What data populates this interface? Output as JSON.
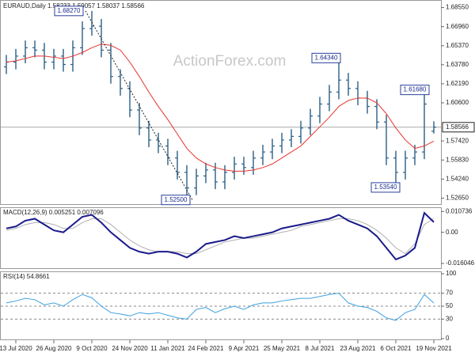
{
  "chart_data": {
    "type": "ohlc",
    "title": "EURAUD,Daily  1.58233 1.59057 1.58037 1.58566",
    "watermark": "ActionForex.com",
    "color": "#2a5f86",
    "categories": [
      null,
      "13 Jul 2020",
      null,
      null,
      null,
      "26 Aug 2020",
      null,
      null,
      null,
      "9 Oct 2020",
      null,
      null,
      null,
      "24 Nov 2020",
      null,
      null,
      null,
      "11 Jan 2021",
      null,
      null,
      null,
      "24 Feb 2021",
      null,
      null,
      null,
      "9 Apr 2021",
      null,
      null,
      null,
      "25 May 2021",
      null,
      null,
      null,
      "8 Jul 2021",
      null,
      null,
      null,
      "23 Aug 2021",
      null,
      null,
      null,
      "6 Oct 2021",
      null,
      null,
      null,
      "19 Nov 2021"
    ],
    "open": [
      1.636,
      1.64,
      1.645,
      1.652,
      1.65,
      1.64,
      1.645,
      1.638,
      1.652,
      1.668,
      1.67,
      1.65,
      1.628,
      1.618,
      1.6,
      1.585,
      1.575,
      1.57,
      1.56,
      1.548,
      1.535,
      1.545,
      1.55,
      1.54,
      1.548,
      1.555,
      1.552,
      1.56,
      1.565,
      1.57,
      1.575,
      1.578,
      1.585,
      1.595,
      1.605,
      1.615,
      1.625,
      1.618,
      1.61,
      1.603,
      1.59,
      1.56,
      1.548,
      1.56,
      1.565,
      1.58233
    ],
    "high": [
      1.646,
      1.651,
      1.658,
      1.658,
      1.656,
      1.651,
      1.651,
      1.658,
      1.674,
      1.6827,
      1.676,
      1.656,
      1.634,
      1.624,
      1.606,
      1.591,
      1.581,
      1.576,
      1.566,
      1.554,
      1.551,
      1.556,
      1.556,
      1.554,
      1.561,
      1.561,
      1.566,
      1.571,
      1.576,
      1.581,
      1.584,
      1.591,
      1.601,
      1.611,
      1.621,
      1.6434,
      1.631,
      1.624,
      1.616,
      1.609,
      1.596,
      1.566,
      1.566,
      1.571,
      1.6168,
      1.59057
    ],
    "low": [
      1.63,
      1.634,
      1.639,
      1.644,
      1.634,
      1.634,
      1.632,
      1.632,
      1.646,
      1.662,
      1.644,
      1.622,
      1.612,
      1.594,
      1.579,
      1.569,
      1.564,
      1.554,
      1.542,
      1.525,
      1.529,
      1.539,
      1.534,
      1.534,
      1.542,
      1.546,
      1.546,
      1.554,
      1.559,
      1.564,
      1.569,
      1.572,
      1.579,
      1.589,
      1.599,
      1.609,
      1.612,
      1.604,
      1.597,
      1.584,
      1.554,
      1.5354,
      1.542,
      1.554,
      1.559,
      1.58037
    ],
    "close": [
      1.64,
      1.645,
      1.652,
      1.65,
      1.64,
      1.645,
      1.638,
      1.652,
      1.668,
      1.67,
      1.65,
      1.628,
      1.618,
      1.6,
      1.585,
      1.575,
      1.57,
      1.56,
      1.548,
      1.535,
      1.545,
      1.55,
      1.54,
      1.548,
      1.555,
      1.552,
      1.56,
      1.565,
      1.57,
      1.575,
      1.578,
      1.585,
      1.595,
      1.605,
      1.615,
      1.625,
      1.618,
      1.61,
      1.603,
      1.59,
      1.56,
      1.548,
      1.56,
      1.565,
      1.605,
      1.58566
    ],
    "ma": {
      "color": "#e8322c",
      "values": [
        1.64,
        1.641,
        1.643,
        1.645,
        1.645,
        1.644,
        1.643,
        1.645,
        1.648,
        1.652,
        1.655,
        1.654,
        1.65,
        1.64,
        1.628,
        1.615,
        1.603,
        1.592,
        1.58,
        1.568,
        1.56,
        1.555,
        1.552,
        1.55,
        1.549,
        1.549,
        1.55,
        1.552,
        1.555,
        1.56,
        1.565,
        1.57,
        1.578,
        1.586,
        1.594,
        1.603,
        1.608,
        1.61,
        1.61,
        1.606,
        1.597,
        1.585,
        1.575,
        1.568,
        1.57,
        1.574
      ]
    },
    "last_price": {
      "value": 1.58566,
      "label": "1.58566"
    },
    "annotations": [
      {
        "text": "1.68270",
        "value": 1.6827
      },
      {
        "text": "1.64340",
        "value": 1.6434
      },
      {
        "text": "1.61680",
        "value": 1.6168
      },
      {
        "text": "1.53540",
        "value": 1.5354
      },
      {
        "text": "1.52500",
        "value": 1.525
      }
    ],
    "ylim": [
      1.5215,
      1.6905
    ],
    "yticks": [
      {
        "value": 1.6855,
        "label": "1.68550"
      },
      {
        "value": 1.6696,
        "label": "1.66960"
      },
      {
        "value": 1.6537,
        "label": "1.65370"
      },
      {
        "value": 1.6378,
        "label": "1.63780"
      },
      {
        "value": 1.6219,
        "label": "1.62190"
      },
      {
        "value": 1.606,
        "label": "1.60600"
      },
      {
        "value": 1.5742,
        "label": "1.57420"
      },
      {
        "value": 1.5583,
        "label": "1.55830"
      },
      {
        "value": 1.5424,
        "label": "1.54240"
      },
      {
        "value": 1.5265,
        "label": "1.52650"
      }
    ],
    "macd": {
      "title": "MACD(12,26,9) 0.005251 0.007096",
      "series": [
        {
          "color": "#1a1a8c",
          "values": [
            0.002,
            0.003,
            0.006,
            0.007,
            0.004,
            0.001,
            0.0,
            0.004,
            0.008,
            0.009,
            0.005,
            0.0,
            -0.004,
            -0.008,
            -0.01,
            -0.011,
            -0.01,
            -0.01,
            -0.011,
            -0.013,
            -0.01,
            -0.006,
            -0.005,
            -0.004,
            -0.002,
            -0.003,
            -0.002,
            -0.001,
            0.0,
            0.002,
            0.003,
            0.004,
            0.005,
            0.006,
            0.007,
            0.009,
            0.006,
            0.004,
            0.002,
            -0.002,
            -0.008,
            -0.014,
            -0.012,
            -0.008,
            0.01,
            0.005251
          ]
        },
        {
          "color": "#b0b0b0",
          "values": [
            0.001,
            0.002,
            0.004,
            0.005,
            0.005,
            0.004,
            0.002,
            0.002,
            0.005,
            0.007,
            0.007,
            0.004,
            0.0,
            -0.004,
            -0.007,
            -0.009,
            -0.01,
            -0.01,
            -0.01,
            -0.011,
            -0.011,
            -0.009,
            -0.007,
            -0.005,
            -0.004,
            -0.003,
            -0.003,
            -0.002,
            -0.001,
            0.0,
            0.001,
            0.003,
            0.004,
            0.005,
            0.006,
            0.007,
            0.007,
            0.006,
            0.004,
            0.001,
            -0.003,
            -0.008,
            -0.011,
            -0.006,
            0.004,
            0.007096
          ]
        }
      ],
      "ylim": [
        -0.0185,
        0.0125
      ],
      "yticks": [
        0.010736,
        {
          "value": 0,
          "label": "0.00"
        },
        -0.016046
      ]
    },
    "rsi": {
      "title": "RSI(14) 54.8661",
      "color": "#3fa0e0",
      "values": [
        55,
        58,
        62,
        60,
        52,
        55,
        50,
        60,
        68,
        63,
        50,
        40,
        38,
        35,
        40,
        38,
        40,
        36,
        32,
        30,
        45,
        48,
        40,
        46,
        50,
        45,
        52,
        55,
        55,
        58,
        60,
        62,
        62,
        65,
        68,
        70,
        55,
        50,
        48,
        42,
        32,
        28,
        40,
        45,
        68,
        54.8661
      ],
      "ylim": [
        0,
        100
      ],
      "yticks": [
        100,
        70,
        50,
        30,
        0
      ]
    }
  }
}
